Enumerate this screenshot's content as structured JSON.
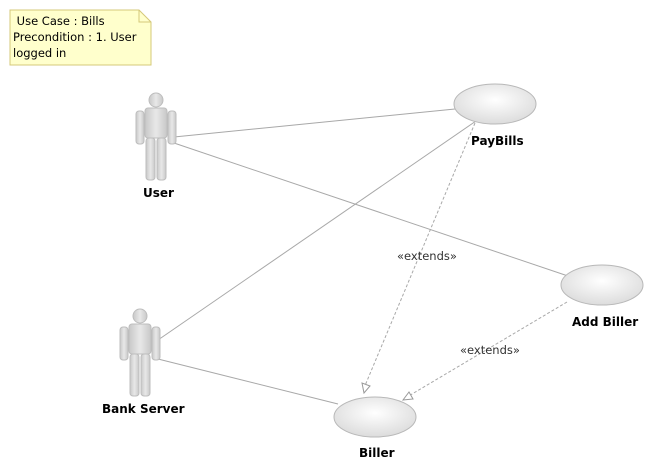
{
  "diagram": {
    "type": "uml-use-case",
    "note": {
      "line1": " Use Case : Bills",
      "line2": "Precondition : 1. User",
      "line3": "logged in"
    },
    "actors": [
      {
        "name": "User"
      },
      {
        "name": "Bank Server"
      }
    ],
    "use_cases": [
      {
        "name": "PayBills"
      },
      {
        "name": "Add Biller"
      },
      {
        "name": "Biller"
      }
    ],
    "relations": {
      "extends_1": "«extends»",
      "extends_2": "«extends»"
    },
    "colors": {
      "note_fill": "#ffffcc",
      "note_border": "#d4c87a",
      "line": "#a0a0a0",
      "ellipse_border": "#b8b8b8"
    }
  }
}
